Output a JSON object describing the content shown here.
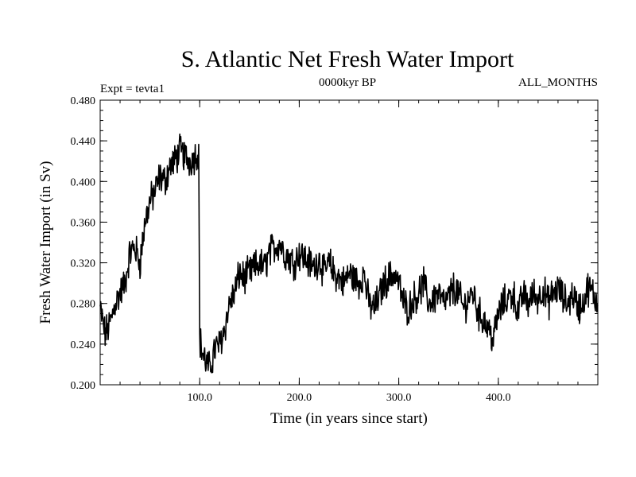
{
  "chart_data": {
    "type": "line",
    "title": "S. Atlantic Net Fresh Water Import",
    "subtitle_left": "Expt = tevta1",
    "subtitle_center": "0000kyr BP",
    "subtitle_right": "ALL_MONTHS",
    "xlabel": "Time (in years since start)",
    "ylabel": "Fresh Water Import (in Sv)",
    "xlim": [
      0,
      500
    ],
    "ylim": [
      0.2,
      0.48
    ],
    "x_ticks": [
      100,
      200,
      300,
      400
    ],
    "x_tick_labels": [
      "100.0",
      "200.0",
      "300.0",
      "400.0"
    ],
    "y_ticks": [
      0.2,
      0.24,
      0.28,
      0.32,
      0.36,
      0.4,
      0.44,
      0.48
    ],
    "y_tick_labels": [
      "0.200",
      "0.240",
      "0.280",
      "0.320",
      "0.360",
      "0.400",
      "0.440",
      "0.480"
    ],
    "line_color": "#000000",
    "series": [
      {
        "name": "Fresh Water Import",
        "x": [
          0,
          5,
          10,
          15,
          20,
          25,
          30,
          35,
          40,
          45,
          50,
          55,
          60,
          65,
          70,
          75,
          80,
          85,
          90,
          95,
          99,
          100,
          102,
          105,
          110,
          115,
          120,
          125,
          130,
          135,
          140,
          145,
          150,
          155,
          160,
          165,
          170,
          175,
          180,
          185,
          190,
          195,
          200,
          205,
          210,
          215,
          220,
          225,
          230,
          235,
          240,
          245,
          250,
          255,
          260,
          265,
          270,
          275,
          280,
          285,
          290,
          295,
          300,
          305,
          310,
          315,
          320,
          325,
          330,
          335,
          340,
          345,
          350,
          355,
          360,
          365,
          370,
          375,
          380,
          385,
          390,
          395,
          400,
          405,
          410,
          415,
          420,
          425,
          430,
          435,
          440,
          445,
          450,
          455,
          460,
          465,
          470,
          475,
          480,
          485,
          490,
          495,
          500
        ],
        "values": [
          0.275,
          0.25,
          0.26,
          0.28,
          0.29,
          0.3,
          0.33,
          0.335,
          0.32,
          0.36,
          0.38,
          0.39,
          0.405,
          0.4,
          0.415,
          0.42,
          0.43,
          0.425,
          0.42,
          0.425,
          0.43,
          0.245,
          0.235,
          0.225,
          0.215,
          0.235,
          0.24,
          0.255,
          0.28,
          0.29,
          0.31,
          0.305,
          0.31,
          0.315,
          0.32,
          0.315,
          0.33,
          0.335,
          0.34,
          0.33,
          0.325,
          0.32,
          0.33,
          0.325,
          0.32,
          0.315,
          0.325,
          0.31,
          0.32,
          0.31,
          0.305,
          0.3,
          0.31,
          0.305,
          0.3,
          0.31,
          0.28,
          0.275,
          0.285,
          0.3,
          0.305,
          0.31,
          0.3,
          0.28,
          0.275,
          0.285,
          0.29,
          0.3,
          0.28,
          0.285,
          0.29,
          0.28,
          0.285,
          0.295,
          0.29,
          0.275,
          0.285,
          0.29,
          0.27,
          0.265,
          0.255,
          0.245,
          0.27,
          0.28,
          0.285,
          0.29,
          0.27,
          0.29,
          0.28,
          0.29,
          0.285,
          0.295,
          0.28,
          0.29,
          0.295,
          0.285,
          0.28,
          0.29,
          0.275,
          0.28,
          0.295,
          0.29,
          0.28
        ],
        "noise_amplitude": 0.014
      }
    ]
  }
}
